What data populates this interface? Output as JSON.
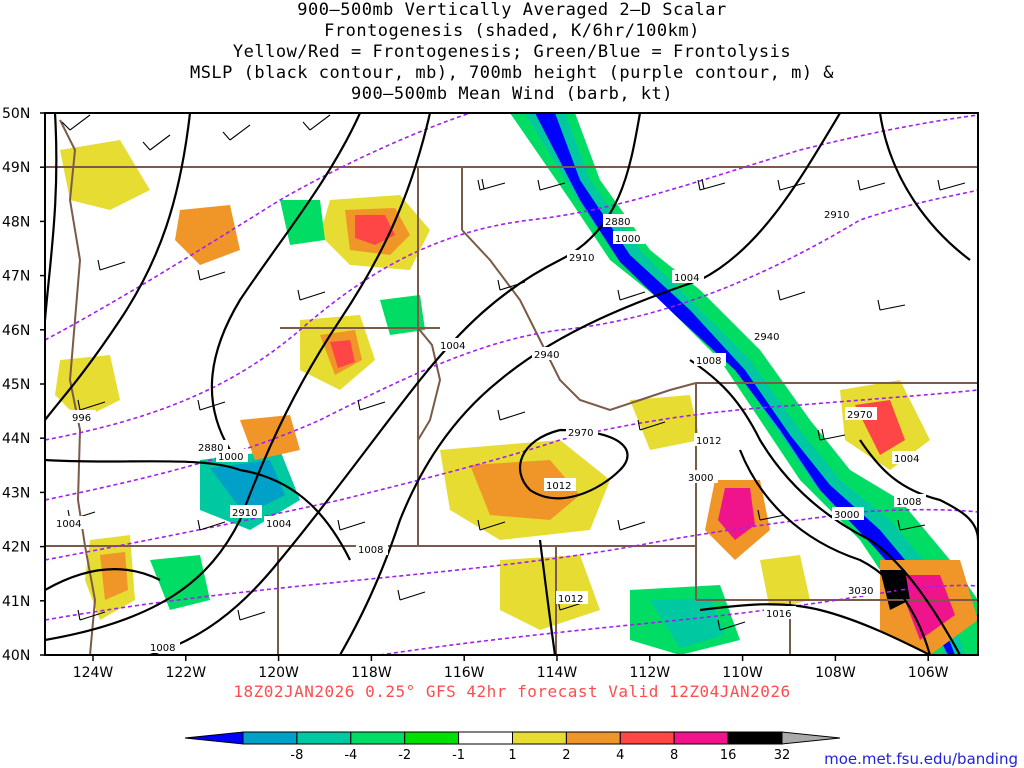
{
  "title_lines": [
    "900–500mb Vertically Averaged 2–D Scalar",
    "Frontogenesis (shaded, K/6hr/100km)",
    "Yellow/Red = Frontogenesis;  Green/Blue = Frontolysis",
    "MSLP (black contour, mb), 700mb height (purple contour, m) &",
    "900–500mb Mean Wind (barb, kt)"
  ],
  "lat_labels": [
    "50N",
    "49N",
    "48N",
    "47N",
    "46N",
    "45N",
    "44N",
    "43N",
    "42N",
    "41N",
    "40N"
  ],
  "lon_labels": [
    "124W",
    "122W",
    "120W",
    "118W",
    "116W",
    "114W",
    "112W",
    "110W",
    "108W",
    "106W"
  ],
  "mslp_labels": [
    "1000",
    "1004",
    "1004",
    "1008",
    "1008",
    "1012",
    "1012",
    "1016",
    "996",
    "1000",
    "1004",
    "1004",
    "1008",
    "1012",
    "1004",
    "1008"
  ],
  "height_labels": [
    "2880",
    "2910",
    "2940",
    "2940",
    "2970",
    "3000",
    "3000",
    "3030",
    "2880",
    "2910",
    "2970",
    "2910"
  ],
  "footer": "18Z02JAN2026 0.25° GFS 42hr forecast Valid 12Z04JAN2026",
  "colorbar": {
    "ticks": [
      "-8",
      "-4",
      "-2",
      "-1",
      "1",
      "2",
      "4",
      "8",
      "16",
      "32"
    ],
    "colors": [
      "#0000ff",
      "#00a0c8",
      "#00c8a0",
      "#00dc64",
      "#00e000",
      "#ffffff",
      "#e6dc32",
      "#f09628",
      "#ff4646",
      "#f0148c",
      "#000000",
      "#aaaaaa"
    ]
  },
  "website": "moe.met.fsu.edu/banding",
  "colors": {
    "mslp": "#000000",
    "height": "#a020f0",
    "borders": "#7a5a48",
    "footer": "#ff4d4d"
  }
}
